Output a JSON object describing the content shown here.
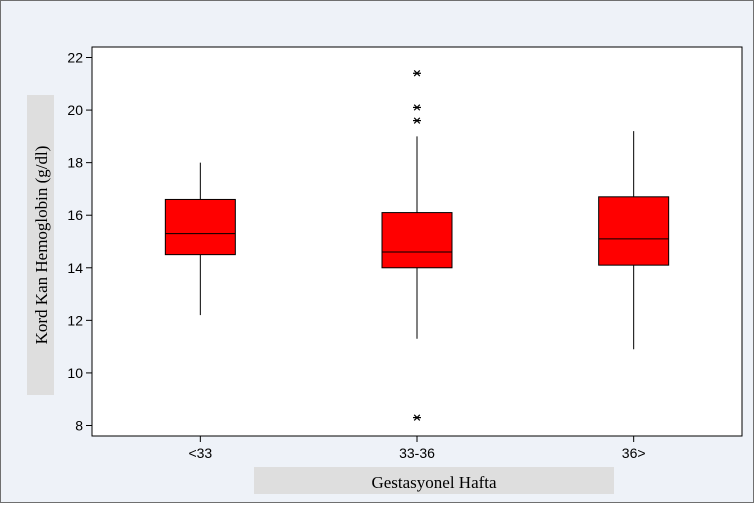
{
  "chart_data": {
    "type": "box",
    "title": "",
    "xlabel": "Gestasyonel Hafta",
    "ylabel": "Kord Kan Hemoglobin (g/dl)",
    "categories": [
      "<33",
      "33-36",
      "36>"
    ],
    "ylim": [
      7.6,
      22.4
    ],
    "yticks": [
      8,
      10,
      12,
      14,
      16,
      18,
      20,
      22
    ],
    "boxes": [
      {
        "category": "<33",
        "whisker_low": 12.2,
        "q1": 14.5,
        "median": 15.3,
        "q3": 16.6,
        "whisker_high": 18.0,
        "outliers": []
      },
      {
        "category": "33-36",
        "whisker_low": 11.3,
        "q1": 14.0,
        "median": 14.6,
        "q3": 16.1,
        "whisker_high": 19.0,
        "outliers": [
          8.3,
          19.6,
          20.1,
          21.4
        ]
      },
      {
        "category": "36>",
        "whisker_low": 10.9,
        "q1": 14.1,
        "median": 15.1,
        "q3": 16.7,
        "whisker_high": 19.2,
        "outliers": []
      }
    ],
    "box_color": "#ff0000",
    "grid": false,
    "legend": "none"
  }
}
